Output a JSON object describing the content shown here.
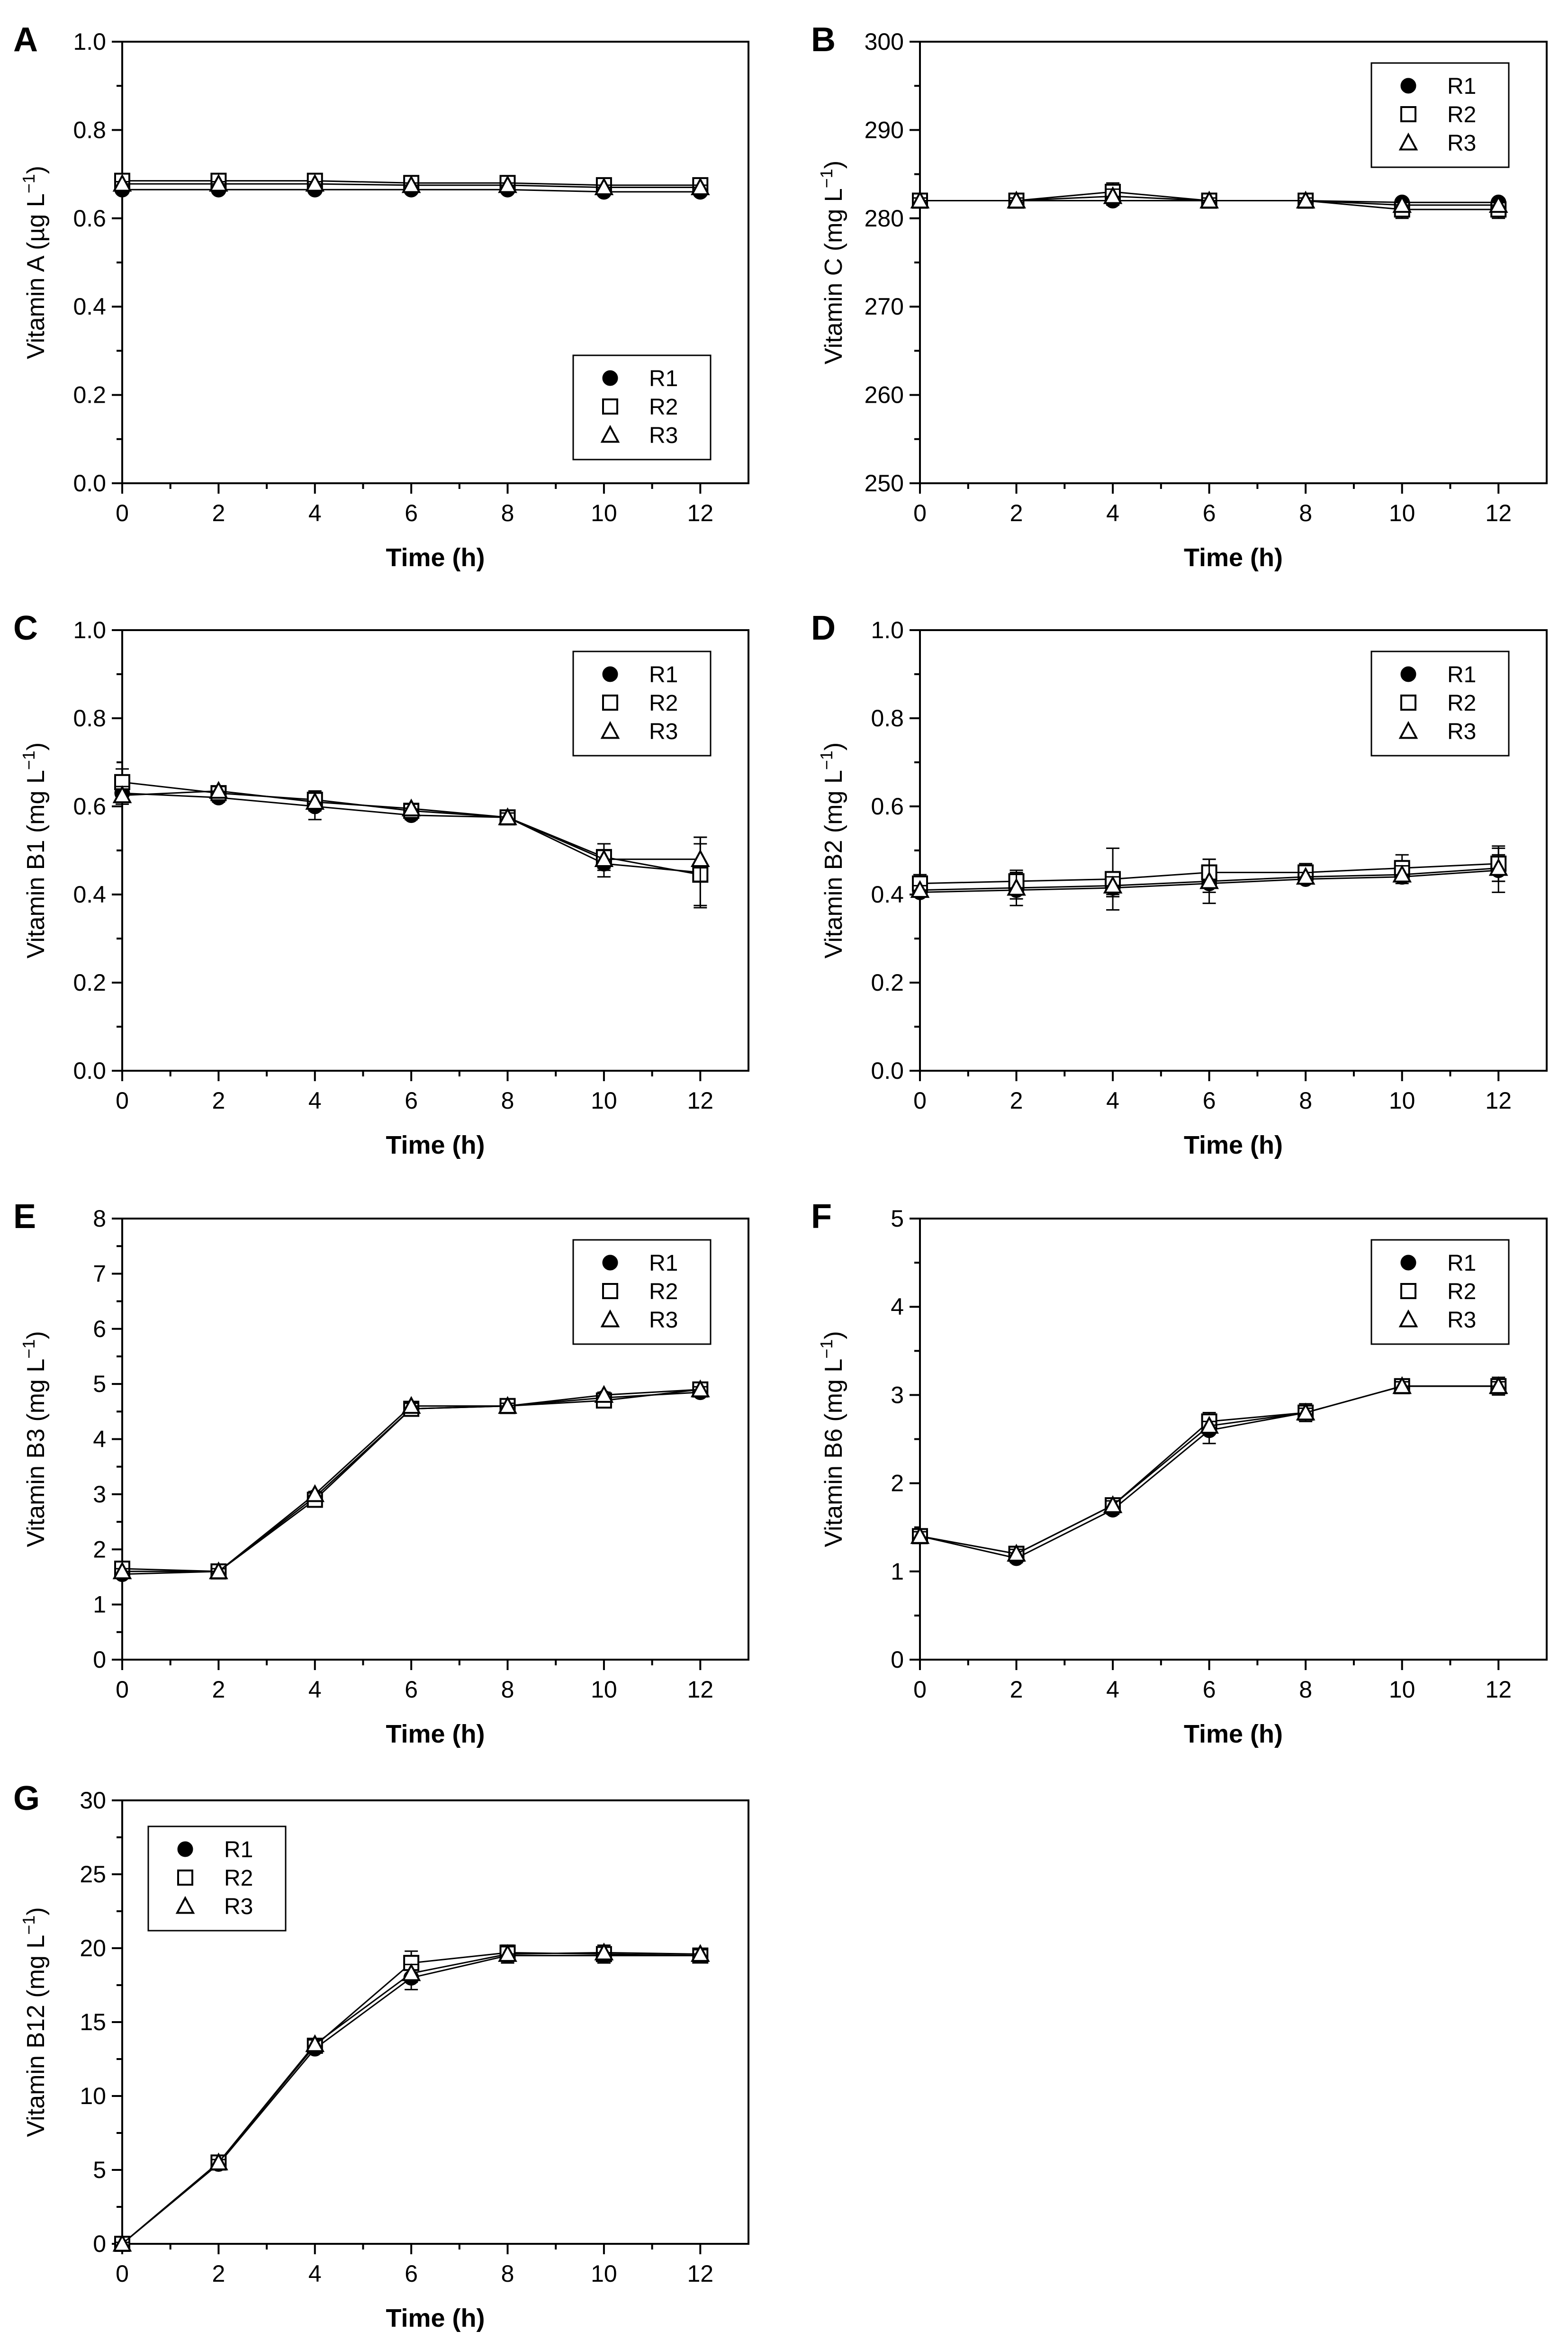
{
  "figure": {
    "series_names": [
      "R1",
      "R2",
      "R3"
    ],
    "marker_styles": [
      "filled-circle",
      "open-square",
      "open-triangle"
    ],
    "line_color": "#000000"
  },
  "chart_data": [
    {
      "panel": "A",
      "type": "line",
      "ylabel_main": "Vitamin A (",
      "ylabel_unit": "µg L",
      "ylabel_exp": "−1",
      "ylabel_close": ")",
      "xlabel": "Time (h)",
      "x": [
        0,
        2,
        4,
        6,
        8,
        10,
        12
      ],
      "xticks": [
        "0",
        "2",
        "4",
        "6",
        "8",
        "10",
        "12"
      ],
      "xlim": [
        0,
        13
      ],
      "ylim": [
        0,
        1.0
      ],
      "yticks": [
        "0.0",
        "0.2",
        "0.4",
        "0.6",
        "0.8",
        "1.0"
      ],
      "legend": "bottom-right",
      "series": [
        {
          "name": "R1",
          "values": [
            0.665,
            0.665,
            0.665,
            0.665,
            0.665,
            0.66,
            0.66
          ],
          "err": [
            0.005,
            0.005,
            0.005,
            0.005,
            0.005,
            0.005,
            0.005
          ]
        },
        {
          "name": "R2",
          "values": [
            0.685,
            0.685,
            0.685,
            0.68,
            0.68,
            0.675,
            0.675
          ],
          "err": [
            0.005,
            0.005,
            0.005,
            0.005,
            0.005,
            0.005,
            0.005
          ]
        },
        {
          "name": "R3",
          "values": [
            0.678,
            0.678,
            0.678,
            0.675,
            0.675,
            0.67,
            0.67
          ],
          "err": [
            0.005,
            0.005,
            0.005,
            0.005,
            0.005,
            0.005,
            0.005
          ]
        }
      ]
    },
    {
      "panel": "B",
      "type": "line",
      "ylabel_main": "Vitamin C (",
      "ylabel_unit": "mg L",
      "ylabel_exp": "−1",
      "ylabel_close": ")",
      "xlabel": "Time (h)",
      "x": [
        0,
        2,
        4,
        6,
        8,
        10,
        12
      ],
      "xticks": [
        "0",
        "2",
        "4",
        "6",
        "8",
        "10",
        "12"
      ],
      "xlim": [
        0,
        13
      ],
      "ylim": [
        250,
        300
      ],
      "yticks": [
        "250",
        "260",
        "270",
        "280",
        "290",
        "300"
      ],
      "legend": "top-right",
      "series": [
        {
          "name": "R1",
          "values": [
            282,
            282,
            282,
            282,
            282,
            281.8,
            281.8
          ],
          "err": [
            0.3,
            0.3,
            0.5,
            0.3,
            0.3,
            0.3,
            0.3
          ]
        },
        {
          "name": "R2",
          "values": [
            282,
            282,
            283,
            282,
            282,
            281,
            281
          ],
          "err": [
            0.3,
            0.3,
            1.0,
            0.5,
            0.3,
            1.0,
            1.0
          ]
        },
        {
          "name": "R3",
          "values": [
            282,
            282,
            282.5,
            282,
            282,
            281.5,
            281.5
          ],
          "err": [
            0.3,
            0.3,
            0.8,
            0.3,
            0.3,
            0.5,
            0.5
          ]
        }
      ]
    },
    {
      "panel": "C",
      "type": "line",
      "ylabel_main": "Vitamin B1 (",
      "ylabel_unit": "mg L",
      "ylabel_exp": "−1",
      "ylabel_close": ")",
      "xlabel": "Time (h)",
      "x": [
        0,
        2,
        4,
        6,
        8,
        10,
        12
      ],
      "xticks": [
        "0",
        "2",
        "4",
        "6",
        "8",
        "10",
        "12"
      ],
      "xlim": [
        0,
        13
      ],
      "ylim": [
        0,
        1.0
      ],
      "yticks": [
        "0.0",
        "0.2",
        "0.4",
        "0.6",
        "0.8",
        "1.0"
      ],
      "legend": "top-right",
      "series": [
        {
          "name": "R1",
          "values": [
            0.63,
            0.62,
            0.6,
            0.58,
            0.575,
            0.47,
            0.45
          ],
          "err": [
            0.01,
            0.01,
            0.03,
            0.01,
            0.01,
            0.03,
            0.08
          ]
        },
        {
          "name": "R2",
          "values": [
            0.655,
            0.63,
            0.615,
            0.59,
            0.575,
            0.485,
            0.445
          ],
          "err": [
            0.03,
            0.01,
            0.02,
            0.01,
            0.01,
            0.03,
            0.07
          ]
        },
        {
          "name": "R3",
          "values": [
            0.625,
            0.635,
            0.61,
            0.595,
            0.575,
            0.48,
            0.48
          ],
          "err": [
            0.02,
            0.01,
            0.02,
            0.01,
            0.01,
            0.02,
            0.05
          ]
        }
      ]
    },
    {
      "panel": "D",
      "type": "line",
      "ylabel_main": "Vitamin B2 (",
      "ylabel_unit": "mg L",
      "ylabel_exp": "−1",
      "ylabel_close": ")",
      "xlabel": "Time (h)",
      "x": [
        0,
        2,
        4,
        6,
        8,
        10,
        12
      ],
      "xticks": [
        "0",
        "2",
        "4",
        "6",
        "8",
        "10",
        "12"
      ],
      "xlim": [
        0,
        13
      ],
      "ylim": [
        0,
        1.0
      ],
      "yticks": [
        "0.0",
        "0.2",
        "0.4",
        "0.6",
        "0.8",
        "1.0"
      ],
      "legend": "top-right",
      "series": [
        {
          "name": "R1",
          "values": [
            0.405,
            0.41,
            0.415,
            0.425,
            0.435,
            0.44,
            0.455
          ],
          "err": [
            0.01,
            0.02,
            0.02,
            0.02,
            0.01,
            0.01,
            0.05
          ]
        },
        {
          "name": "R2",
          "values": [
            0.425,
            0.43,
            0.435,
            0.45,
            0.45,
            0.46,
            0.47
          ],
          "err": [
            0.02,
            0.02,
            0.07,
            0.03,
            0.02,
            0.03,
            0.04
          ]
        },
        {
          "name": "R3",
          "values": [
            0.41,
            0.415,
            0.42,
            0.43,
            0.44,
            0.445,
            0.46
          ],
          "err": [
            0.01,
            0.04,
            0.02,
            0.05,
            0.01,
            0.02,
            0.03
          ]
        }
      ]
    },
    {
      "panel": "E",
      "type": "line",
      "ylabel_main": "Vitamin B3 (",
      "ylabel_unit": "mg L",
      "ylabel_exp": "−1",
      "ylabel_close": ")",
      "xlabel": "Time (h)",
      "x": [
        0,
        2,
        4,
        6,
        8,
        10,
        12
      ],
      "xticks": [
        "0",
        "2",
        "4",
        "6",
        "8",
        "10",
        "12"
      ],
      "xlim": [
        0,
        13
      ],
      "ylim": [
        0,
        8
      ],
      "yticks": [
        "0",
        "1",
        "2",
        "3",
        "4",
        "5",
        "6",
        "7",
        "8"
      ],
      "legend": "top-right",
      "series": [
        {
          "name": "R1",
          "values": [
            1.55,
            1.6,
            2.95,
            4.55,
            4.6,
            4.75,
            4.85
          ],
          "err": [
            0.05,
            0.05,
            0.05,
            0.05,
            0.05,
            0.05,
            0.05
          ]
        },
        {
          "name": "R2",
          "values": [
            1.65,
            1.6,
            2.9,
            4.55,
            4.6,
            4.7,
            4.9
          ],
          "err": [
            0.05,
            0.05,
            0.05,
            0.05,
            0.05,
            0.05,
            0.05
          ]
        },
        {
          "name": "R3",
          "values": [
            1.6,
            1.6,
            3.0,
            4.6,
            4.6,
            4.8,
            4.9
          ],
          "err": [
            0.05,
            0.05,
            0.05,
            0.05,
            0.05,
            0.05,
            0.05
          ]
        }
      ]
    },
    {
      "panel": "F",
      "type": "line",
      "ylabel_main": "Vitamin B6 (",
      "ylabel_unit": "mg L",
      "ylabel_exp": "−1",
      "ylabel_close": ")",
      "xlabel": "Time (h)",
      "x": [
        0,
        2,
        4,
        6,
        8,
        10,
        12
      ],
      "xticks": [
        "0",
        "2",
        "4",
        "6",
        "8",
        "10",
        "12"
      ],
      "xlim": [
        0,
        13
      ],
      "ylim": [
        0,
        5
      ],
      "yticks": [
        "0",
        "1",
        "2",
        "3",
        "4",
        "5"
      ],
      "legend": "top-right",
      "series": [
        {
          "name": "R1",
          "values": [
            1.4,
            1.15,
            1.7,
            2.6,
            2.8,
            3.1,
            3.1
          ],
          "err": [
            0.05,
            0.05,
            0.05,
            0.15,
            0.1,
            0.05,
            0.1
          ]
        },
        {
          "name": "R2",
          "values": [
            1.4,
            1.2,
            1.75,
            2.7,
            2.8,
            3.1,
            3.1
          ],
          "err": [
            0.05,
            0.05,
            0.05,
            0.1,
            0.05,
            0.05,
            0.05
          ]
        },
        {
          "name": "R3",
          "values": [
            1.4,
            1.2,
            1.75,
            2.65,
            2.8,
            3.1,
            3.1
          ],
          "err": [
            0.05,
            0.05,
            0.05,
            0.05,
            0.05,
            0.05,
            0.05
          ]
        }
      ]
    },
    {
      "panel": "G",
      "type": "line",
      "ylabel_main": "Vitamin B12 (",
      "ylabel_unit": "mg L",
      "ylabel_exp": "−1",
      "ylabel_close": ")",
      "xlabel": "Time (h)",
      "x": [
        0,
        2,
        4,
        6,
        8,
        10,
        12
      ],
      "xticks": [
        "0",
        "2",
        "4",
        "6",
        "8",
        "10",
        "12"
      ],
      "xlim": [
        0,
        13
      ],
      "ylim": [
        0,
        30
      ],
      "yticks": [
        "0",
        "5",
        "10",
        "15",
        "20",
        "25",
        "30"
      ],
      "legend": "top-left",
      "series": [
        {
          "name": "R1",
          "values": [
            0,
            5.4,
            13.2,
            18.0,
            19.5,
            19.5,
            19.5
          ],
          "err": [
            0.1,
            0.2,
            0.3,
            0.8,
            0.5,
            0.5,
            0.3
          ]
        },
        {
          "name": "R2",
          "values": [
            0,
            5.5,
            13.4,
            19.0,
            19.7,
            19.6,
            19.5
          ],
          "err": [
            0.1,
            0.2,
            0.3,
            0.8,
            0.5,
            0.5,
            0.3
          ]
        },
        {
          "name": "R3",
          "values": [
            0,
            5.5,
            13.5,
            18.3,
            19.6,
            19.7,
            19.6
          ],
          "err": [
            0.1,
            0.2,
            0.3,
            0.6,
            0.5,
            0.5,
            0.3
          ]
        }
      ]
    }
  ]
}
